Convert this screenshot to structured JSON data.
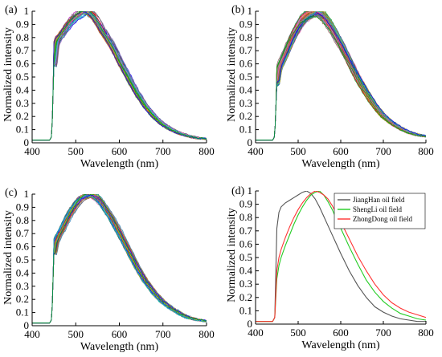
{
  "chart_data": [
    {
      "type": "line",
      "panel_label": "(a)",
      "xlabel": "Wavelength (nm)",
      "ylabel": "Normalized intensity",
      "xlim": [
        400,
        800
      ],
      "ylim": [
        0,
        1
      ],
      "xticks": [
        "400",
        "500",
        "600",
        "700",
        "800"
      ],
      "yticks": [
        "0",
        "0.1",
        "0.2",
        "0.3",
        "0.4",
        "0.5",
        "0.6",
        "0.7",
        "0.8",
        "0.9",
        "1"
      ],
      "grid": false,
      "series_count": 60,
      "curve_template": {
        "x": [
          400,
          440,
          445,
          450,
          455,
          460,
          470,
          480,
          490,
          500,
          510,
          520,
          530,
          540,
          550,
          560,
          570,
          580,
          590,
          600,
          620,
          640,
          660,
          680,
          700,
          720,
          740,
          760,
          780,
          800
        ],
        "y": [
          0.02,
          0.02,
          0.05,
          0.6,
          0.76,
          0.8,
          0.84,
          0.89,
          0.93,
          0.96,
          0.98,
          1.0,
          0.99,
          0.96,
          0.91,
          0.85,
          0.8,
          0.75,
          0.69,
          0.62,
          0.5,
          0.38,
          0.28,
          0.2,
          0.14,
          0.1,
          0.07,
          0.05,
          0.035,
          0.03
        ]
      },
      "spread": 0.03
    },
    {
      "type": "line",
      "panel_label": "(b)",
      "xlabel": "Wavelength (nm)",
      "ylabel": "Normalized intensity",
      "xlim": [
        400,
        800
      ],
      "ylim": [
        0,
        1
      ],
      "xticks": [
        "400",
        "500",
        "600",
        "700",
        "800"
      ],
      "yticks": [
        "0",
        "0.1",
        "0.2",
        "0.3",
        "0.4",
        "0.5",
        "0.6",
        "0.7",
        "0.8",
        "0.9",
        "1"
      ],
      "grid": false,
      "series_count": 60,
      "curve_template": {
        "x": [
          400,
          440,
          445,
          450,
          455,
          460,
          470,
          480,
          490,
          500,
          510,
          520,
          530,
          540,
          550,
          560,
          570,
          580,
          590,
          600,
          620,
          640,
          660,
          680,
          700,
          720,
          740,
          760,
          780,
          800
        ],
        "y": [
          0.02,
          0.02,
          0.05,
          0.45,
          0.56,
          0.6,
          0.67,
          0.75,
          0.82,
          0.88,
          0.93,
          0.96,
          0.98,
          1.0,
          0.99,
          0.96,
          0.92,
          0.87,
          0.81,
          0.75,
          0.62,
          0.49,
          0.38,
          0.28,
          0.2,
          0.15,
          0.11,
          0.08,
          0.06,
          0.05
        ]
      },
      "spread": 0.04
    },
    {
      "type": "line",
      "panel_label": "(c)",
      "xlabel": "Wavelength (nm)",
      "ylabel": "Normalized intensity",
      "xlim": [
        400,
        800
      ],
      "ylim": [
        0,
        1
      ],
      "xticks": [
        "400",
        "500",
        "600",
        "700",
        "800"
      ],
      "yticks": [
        "0",
        "0.1",
        "0.2",
        "0.3",
        "0.4",
        "0.5",
        "0.6",
        "0.7",
        "0.8",
        "0.9",
        "1"
      ],
      "grid": false,
      "series_count": 60,
      "curve_template": {
        "x": [
          400,
          440,
          445,
          450,
          455,
          460,
          470,
          480,
          490,
          500,
          510,
          520,
          530,
          540,
          550,
          560,
          570,
          580,
          590,
          600,
          620,
          640,
          660,
          680,
          700,
          720,
          740,
          760,
          780,
          800
        ],
        "y": [
          0.02,
          0.02,
          0.05,
          0.55,
          0.64,
          0.68,
          0.74,
          0.81,
          0.87,
          0.92,
          0.96,
          0.98,
          1.0,
          0.99,
          0.97,
          0.93,
          0.88,
          0.83,
          0.77,
          0.71,
          0.58,
          0.45,
          0.34,
          0.25,
          0.18,
          0.13,
          0.09,
          0.06,
          0.045,
          0.035
        ]
      },
      "spread": 0.025
    },
    {
      "type": "line",
      "panel_label": "(d)",
      "xlabel": "Wavelength (nm)",
      "ylabel": "Normalized intensity",
      "xlim": [
        400,
        800
      ],
      "ylim": [
        0,
        1
      ],
      "xticks": [
        "400",
        "500",
        "600",
        "700",
        "800"
      ],
      "yticks": [
        "0",
        "0.1",
        "0.2",
        "0.3",
        "0.4",
        "0.5",
        "0.6",
        "0.7",
        "0.8",
        "0.9",
        "1"
      ],
      "grid": false,
      "legend_position": "top-right",
      "series": [
        {
          "name": "JiangHan oil field",
          "color": "#555555",
          "x": [
            400,
            440,
            445,
            450,
            455,
            460,
            470,
            480,
            490,
            500,
            510,
            520,
            530,
            540,
            550,
            560,
            570,
            580,
            590,
            600,
            620,
            640,
            660,
            680,
            700,
            720,
            740,
            760,
            780,
            800
          ],
          "y": [
            0.02,
            0.02,
            0.05,
            0.72,
            0.84,
            0.88,
            0.91,
            0.93,
            0.95,
            0.97,
            0.99,
            1.0,
            0.98,
            0.94,
            0.88,
            0.81,
            0.74,
            0.67,
            0.6,
            0.53,
            0.4,
            0.29,
            0.2,
            0.13,
            0.09,
            0.06,
            0.04,
            0.03,
            0.02,
            0.02
          ]
        },
        {
          "name": "ShengLi oil field",
          "color": "#22cc22",
          "x": [
            400,
            440,
            445,
            450,
            455,
            460,
            470,
            480,
            490,
            500,
            510,
            520,
            530,
            540,
            550,
            560,
            570,
            580,
            590,
            600,
            620,
            640,
            660,
            680,
            700,
            720,
            740,
            760,
            780,
            800
          ],
          "y": [
            0.02,
            0.02,
            0.05,
            0.34,
            0.44,
            0.5,
            0.59,
            0.67,
            0.75,
            0.82,
            0.88,
            0.93,
            0.97,
            0.99,
            1.0,
            0.97,
            0.92,
            0.86,
            0.79,
            0.72,
            0.58,
            0.45,
            0.33,
            0.24,
            0.17,
            0.12,
            0.08,
            0.06,
            0.04,
            0.03
          ]
        },
        {
          "name": "ZhongDong oil field",
          "color": "#ff3333",
          "x": [
            400,
            440,
            445,
            450,
            455,
            460,
            470,
            480,
            490,
            500,
            510,
            520,
            530,
            540,
            550,
            560,
            570,
            580,
            590,
            600,
            620,
            640,
            660,
            680,
            700,
            720,
            740,
            760,
            780,
            800
          ],
          "y": [
            0.02,
            0.02,
            0.05,
            0.4,
            0.5,
            0.56,
            0.65,
            0.73,
            0.8,
            0.86,
            0.91,
            0.95,
            0.98,
            1.0,
            0.99,
            0.97,
            0.94,
            0.89,
            0.83,
            0.77,
            0.64,
            0.51,
            0.4,
            0.3,
            0.22,
            0.16,
            0.12,
            0.09,
            0.07,
            0.05
          ]
        }
      ]
    }
  ],
  "colors": {
    "series_palette": [
      "#1f77b4",
      "#ff7f0e",
      "#2ca02c",
      "#d62728",
      "#9467bd",
      "#8c564b",
      "#e377c2",
      "#7f7f7f",
      "#bcbd22",
      "#17becf",
      "#0000ff",
      "#00aa00",
      "#ff0000",
      "#aa00aa",
      "#008888",
      "#886600"
    ]
  }
}
